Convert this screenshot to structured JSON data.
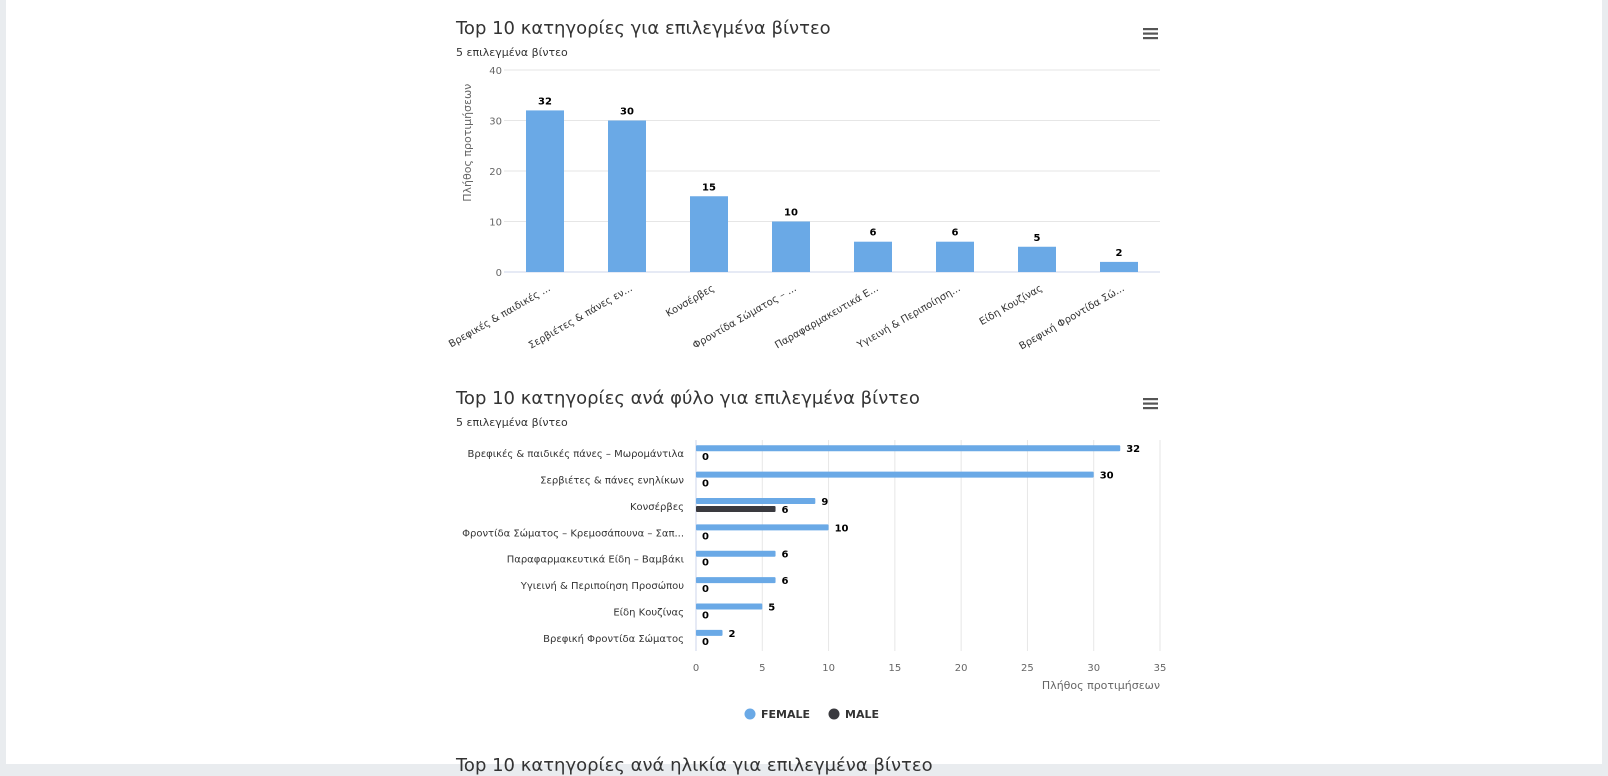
{
  "charts": [
    {
      "title": "Top 10 κατηγορίες για επιλεγμένα βίντεο",
      "subtitle": "5 επιλεγμένα βίντεο",
      "menu_icon": "hamburger-menu-icon"
    },
    {
      "title": "Top 10 κατηγορίες ανά φύλο για επιλεγμένα βίντεο",
      "subtitle": "5 επιλεγμένα βίντεο",
      "menu_icon": "hamburger-menu-icon"
    }
  ],
  "next_section_title": "Top 10 κατηγορίες ανά ηλικία για επιλεγμένα βίντεο",
  "chart_data": [
    {
      "type": "bar",
      "title": "Top 10 κατηγορίες για επιλεγμένα βίντεο",
      "subtitle": "5 επιλεγμένα βίντεο",
      "ylabel": "Πλήθος προτιμήσεων",
      "xlabel": "",
      "ylim": [
        0,
        40
      ],
      "yticks": [
        0,
        10,
        20,
        30,
        40
      ],
      "grid": true,
      "categories": [
        "Βρεφικές & παιδικές ...",
        "Σερβιέτες & πάνες εν...",
        "Κονσέρβες",
        "Φροντίδα Σώματος – ...",
        "Παραφαρμακευτικά Ε...",
        "Υγιεινή & Περιποίηση...",
        "Είδη Κουζίνας",
        "Βρεφική Φροντίδα Σώ..."
      ],
      "values": [
        32,
        30,
        15,
        10,
        6,
        6,
        5,
        2
      ],
      "color": "#6aa9e6"
    },
    {
      "type": "bar",
      "orientation": "horizontal",
      "title": "Top 10 κατηγορίες ανά φύλο για επιλεγμένα βίντεο",
      "subtitle": "5 επιλεγμένα βίντεο",
      "xlabel": "Πλήθος προτιμήσεων",
      "xlim": [
        0,
        35
      ],
      "xticks": [
        0,
        5,
        10,
        15,
        20,
        25,
        30,
        35
      ],
      "grid": true,
      "legend": "bottom-center",
      "categories": [
        "Βρεφικές & παιδικές πάνες – Μωρομάντιλα",
        "Σερβιέτες & πάνες ενηλίκων",
        "Κονσέρβες",
        "Φροντίδα Σώματος – Κρεμοσάπουνα – Σαπ...",
        "Παραφαρμακευτικά Είδη – Βαμβάκι",
        "Υγιεινή & Περιποίηση Προσώπου",
        "Είδη Κουζίνας",
        "Βρεφική Φροντίδα Σώματος"
      ],
      "series": [
        {
          "name": "FEMALE",
          "color": "#6aa9e6",
          "values": [
            32,
            30,
            9,
            10,
            6,
            6,
            5,
            2
          ]
        },
        {
          "name": "MALE",
          "color": "#3a3a3f",
          "values": [
            0,
            0,
            6,
            0,
            0,
            0,
            0,
            0
          ]
        }
      ]
    }
  ]
}
